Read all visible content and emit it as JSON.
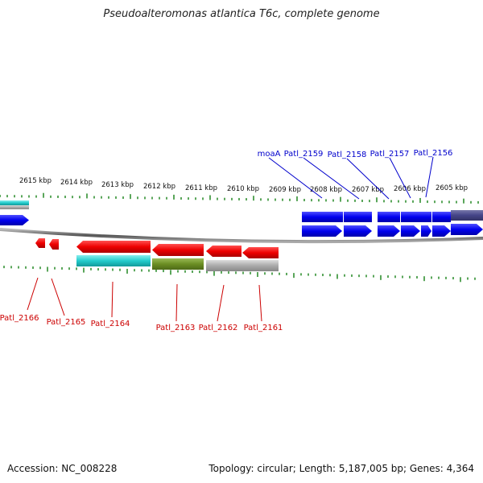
{
  "title": "Pseudoalteromonas atlantica T6c, complete genome",
  "scale_labels": [
    "2615 kbp",
    "2614 kbp",
    "2613 kbp",
    "2612 kbp",
    "2611 kbp",
    "2610 kbp",
    "2609 kbp",
    "2608 kbp",
    "2607 kbp",
    "2606 kbp",
    "2605 kbp"
  ],
  "genes_top": [
    {
      "label": "moaA",
      "color": "#0000cc"
    },
    {
      "label": "Patl_2159",
      "color": "#0000cc"
    },
    {
      "label": "Patl_2158",
      "color": "#0000cc"
    },
    {
      "label": "Patl_2157",
      "color": "#0000cc"
    },
    {
      "label": "Patl_2156",
      "color": "#0000cc"
    }
  ],
  "genes_bottom": [
    {
      "label": "Patl_2166",
      "color": "#cc0000"
    },
    {
      "label": "Patl_2165",
      "color": "#cc0000"
    },
    {
      "label": "Patl_2164",
      "color": "#cc0000"
    },
    {
      "label": "Patl_2163",
      "color": "#cc0000"
    },
    {
      "label": "Patl_2162",
      "color": "#cc0000"
    },
    {
      "label": "Patl_2161",
      "color": "#cc0000"
    }
  ],
  "colors": {
    "forward_gene": "#0000ee",
    "reverse_gene": "#ee0000",
    "feature_cyan": "#22cccc",
    "feature_olive": "#6b8e23",
    "feature_gray": "#aaaaaa",
    "feature_purple": "#444488",
    "tick": "#228822",
    "backbone": "#777777"
  },
  "footer": {
    "accession": "Accession: NC_008228",
    "topology": "Topology: circular; Length: 5,187,005 bp; Genes: 4,364"
  }
}
